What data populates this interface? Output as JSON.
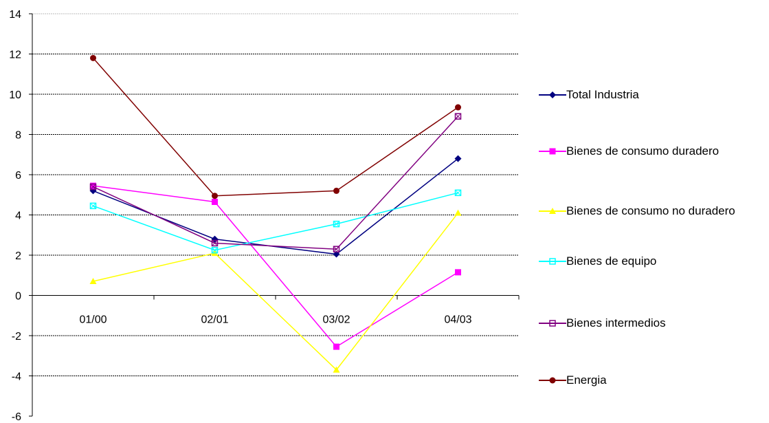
{
  "chart_data": {
    "type": "line",
    "categories": [
      "01/00",
      "02/01",
      "03/02",
      "04/03"
    ],
    "ylim": [
      -6,
      14
    ],
    "yticks": [
      "14",
      "12",
      "10",
      "8",
      "6",
      "4",
      "2",
      "0",
      "-2",
      "-4",
      "-6"
    ],
    "grid": true,
    "legend_position": "right",
    "series": [
      {
        "name": "Total Industria",
        "values": [
          5.2,
          2.8,
          2.05,
          6.8
        ],
        "color": "#000080",
        "marker": "diamond"
      },
      {
        "name": "Bienes de consumo duradero",
        "values": [
          5.45,
          4.65,
          -2.55,
          1.15
        ],
        "color": "#ff00ff",
        "marker": "square"
      },
      {
        "name": "Bienes de consumo no duradero",
        "values": [
          0.7,
          2.1,
          -3.7,
          4.1
        ],
        "color": "#ffff00",
        "marker": "triangle"
      },
      {
        "name": "Bienes de equipo",
        "values": [
          4.45,
          2.25,
          3.55,
          5.1
        ],
        "color": "#00ffff",
        "marker": "square-x"
      },
      {
        "name": "Bienes intermedios",
        "values": [
          5.4,
          2.6,
          2.3,
          8.9
        ],
        "color": "#800080",
        "marker": "square-x"
      },
      {
        "name": "Energia",
        "values": [
          11.8,
          4.95,
          5.2,
          9.35
        ],
        "color": "#800000",
        "marker": "circle"
      }
    ]
  }
}
